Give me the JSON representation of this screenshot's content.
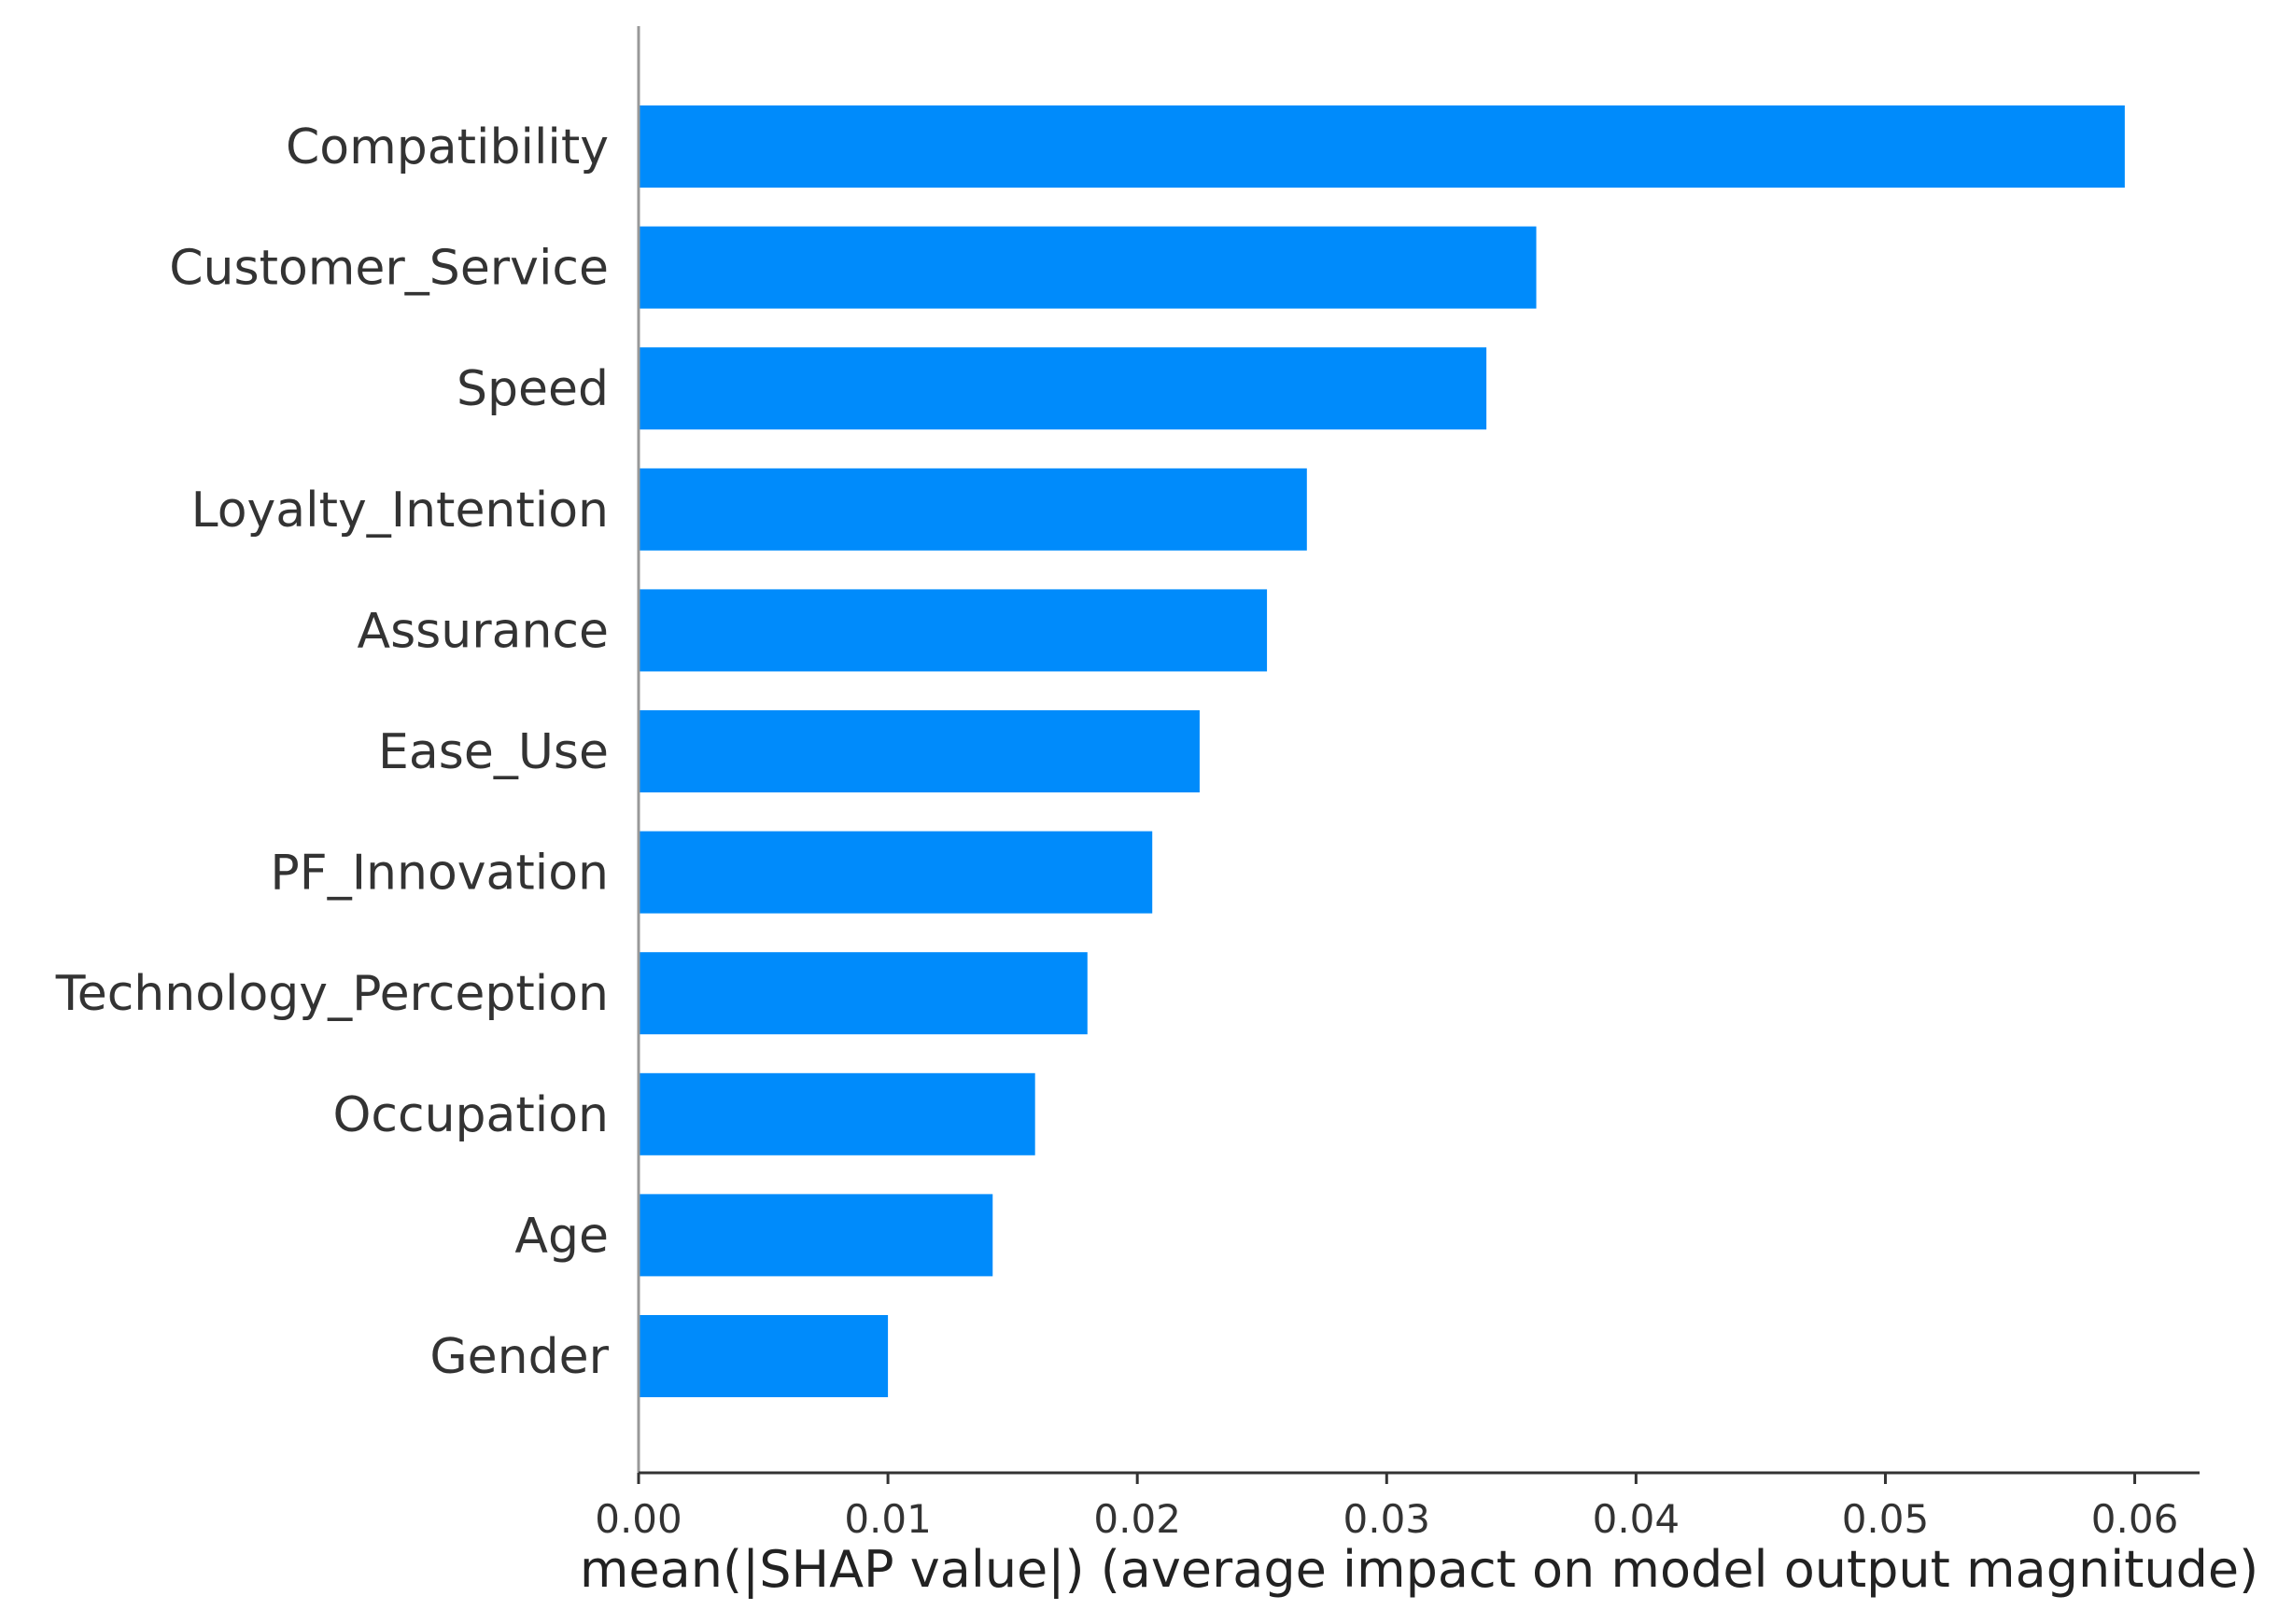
{
  "chart_data": {
    "type": "bar",
    "orientation": "horizontal",
    "title": "",
    "categories": [
      "Compatibility",
      "Customer_Service",
      "Speed",
      "Loyalty_Intention",
      "Assurance",
      "Ease_Use",
      "PF_Innovation",
      "Technology_Perception",
      "Occupation",
      "Age",
      "Gender"
    ],
    "values": [
      0.0596,
      0.036,
      0.034,
      0.0268,
      0.0252,
      0.0225,
      0.0206,
      0.018,
      0.0159,
      0.0142,
      0.01
    ],
    "xlabel": "mean(|SHAP value|) (average impact on model output magnitude)",
    "ylabel": "",
    "xlim": [
      0,
      0.0626
    ],
    "xticks": [
      0.0,
      0.01,
      0.02,
      0.03,
      0.04,
      0.05,
      0.06
    ],
    "xtick_labels": [
      "0.00",
      "0.01",
      "0.02",
      "0.03",
      "0.04",
      "0.05",
      "0.06"
    ],
    "grid": false,
    "bar_color": "#008bfb"
  }
}
